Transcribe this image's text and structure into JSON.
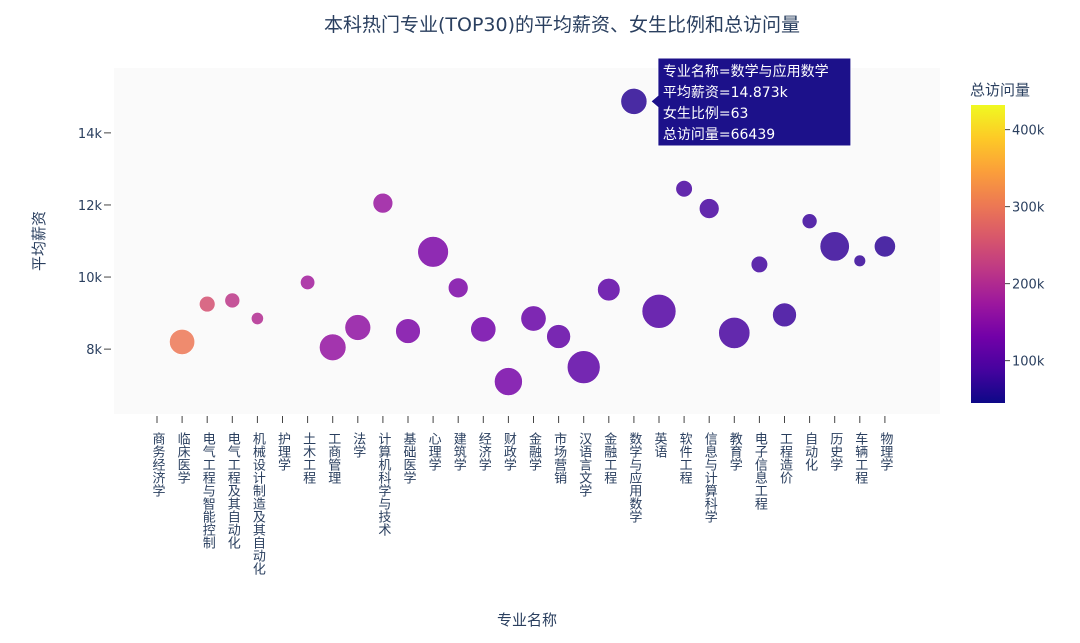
{
  "chart_data": {
    "type": "scatter",
    "title": "本科热门专业(TOP30)的平均薪资、女生比例和总访问量",
    "xlabel": "专业名称",
    "ylabel": "平均薪资",
    "ylim": [
      6200,
      15800
    ],
    "yticks": [
      8000,
      10000,
      12000,
      14000
    ],
    "ytick_labels": [
      "8k",
      "10k",
      "12k",
      "14k"
    ],
    "color_label": "总访问量",
    "color_range": [
      45000,
      432000
    ],
    "color_ticks": [
      100000,
      200000,
      300000,
      400000
    ],
    "color_tick_labels": [
      "100k",
      "200k",
      "300k",
      "400k"
    ],
    "categories": [
      "商务经济学",
      "临床医学",
      "电气工程与智能控制",
      "电气工程及其自动化",
      "机械设计制造及其自动化",
      "护理学",
      "土木工程",
      "工商管理",
      "法学",
      "计算机科学与技术",
      "基础医学",
      "心理学",
      "建筑学",
      "经济学",
      "财政学",
      "金融学",
      "市场营销",
      "汉语言文学",
      "金融工程",
      "数学与应用数学",
      "英语",
      "软件工程",
      "信息与计算科学",
      "教育学",
      "电子信息工程",
      "工程造价",
      "自动化",
      "历史学",
      "车辆工程",
      "物理学"
    ],
    "points": [
      {
        "x": "临床医学",
        "salary": 8200,
        "female_ratio": 60,
        "visits": 300000
      },
      {
        "x": "电气工程与智能控制",
        "salary": 9250,
        "female_ratio": 25,
        "visits": 250000
      },
      {
        "x": "电气工程及其自动化",
        "salary": 9350,
        "female_ratio": 22,
        "visits": 215000
      },
      {
        "x": "机械设计制造及其自动化",
        "salary": 8850,
        "female_ratio": 12,
        "visits": 200000
      },
      {
        "x": "土木工程",
        "salary": 9850,
        "female_ratio": 20,
        "visits": 180000
      },
      {
        "x": "工商管理",
        "salary": 8050,
        "female_ratio": 65,
        "visits": 165000
      },
      {
        "x": "法学",
        "salary": 8600,
        "female_ratio": 62,
        "visits": 160000
      },
      {
        "x": "计算机科学与技术",
        "salary": 12050,
        "female_ratio": 40,
        "visits": 170000
      },
      {
        "x": "基础医学",
        "salary": 8500,
        "female_ratio": 58,
        "visits": 140000
      },
      {
        "x": "心理学",
        "salary": 10700,
        "female_ratio": 80,
        "visits": 140000
      },
      {
        "x": "建筑学",
        "salary": 9700,
        "female_ratio": 40,
        "visits": 140000
      },
      {
        "x": "经济学",
        "salary": 8550,
        "female_ratio": 60,
        "visits": 130000
      },
      {
        "x": "财政学",
        "salary": 7100,
        "female_ratio": 70,
        "visits": 135000
      },
      {
        "x": "金融学",
        "salary": 8850,
        "female_ratio": 60,
        "visits": 120000
      },
      {
        "x": "市场营销",
        "salary": 8350,
        "female_ratio": 55,
        "visits": 115000
      },
      {
        "x": "汉语言文学",
        "salary": 7500,
        "female_ratio": 88,
        "visits": 110000
      },
      {
        "x": "金融工程",
        "salary": 9650,
        "female_ratio": 50,
        "visits": 110000
      },
      {
        "x": "数学与应用数学",
        "salary": 14873,
        "female_ratio": 63,
        "visits": 66439
      },
      {
        "x": "英语",
        "salary": 9050,
        "female_ratio": 92,
        "visits": 100000
      },
      {
        "x": "软件工程",
        "salary": 12450,
        "female_ratio": 28,
        "visits": 90000
      },
      {
        "x": "信息与计算科学",
        "salary": 11900,
        "female_ratio": 40,
        "visits": 90000
      },
      {
        "x": "教育学",
        "salary": 8450,
        "female_ratio": 82,
        "visits": 90000
      },
      {
        "x": "电子信息工程",
        "salary": 10350,
        "female_ratio": 28,
        "visits": 85000
      },
      {
        "x": "工程造价",
        "salary": 8950,
        "female_ratio": 55,
        "visits": 80000
      },
      {
        "x": "自动化",
        "salary": 11550,
        "female_ratio": 22,
        "visits": 80000
      },
      {
        "x": "历史学",
        "salary": 10850,
        "female_ratio": 75,
        "visits": 75000
      },
      {
        "x": "车辆工程",
        "salary": 10450,
        "female_ratio": 10,
        "visits": 75000
      },
      {
        "x": "物理学",
        "salary": 10850,
        "female_ratio": 45,
        "visits": 70000
      }
    ],
    "hover": {
      "target": "数学与应用数学",
      "lines": [
        "专业名称=数学与应用数学",
        "平均薪资=14.873k",
        "女生比例=63",
        "总访问量=66439"
      ]
    },
    "colorscale": [
      "#0d0887",
      "#46039f",
      "#7201a8",
      "#9c179e",
      "#bd3786",
      "#d8576b",
      "#ed7953",
      "#fb9f3a",
      "#fdca26",
      "#f0f921"
    ],
    "plot_bg": "#fafafa",
    "hover_bg": "#1c118a"
  }
}
